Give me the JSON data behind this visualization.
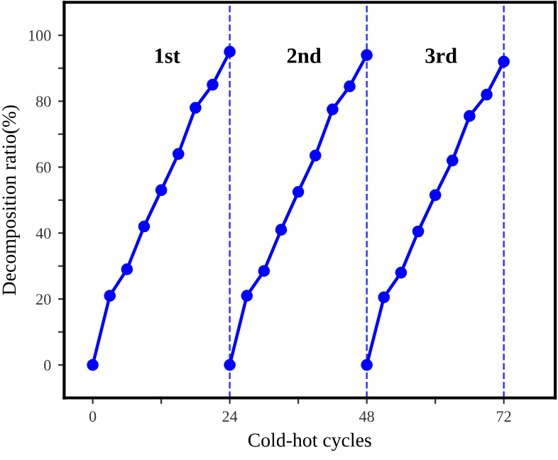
{
  "chart_data": {
    "type": "line",
    "xlabel": "Cold-hot cycles",
    "ylabel": "Decomposition ratio(%)",
    "series": [
      {
        "color": "#0000ff",
        "x": [
          0,
          3,
          6,
          9,
          12,
          15,
          18,
          21,
          24
        ],
        "values": [
          0,
          21,
          29,
          42,
          53,
          64,
          78,
          85,
          95
        ]
      },
      {
        "color": "#0000ff",
        "x": [
          24,
          27,
          30,
          33,
          36,
          39,
          42,
          45,
          48
        ],
        "values": [
          0,
          21,
          28.5,
          41,
          52.5,
          63.5,
          77.5,
          84.5,
          94
        ]
      },
      {
        "color": "#0000ff",
        "x": [
          48,
          51,
          54,
          57,
          60,
          63,
          66,
          69,
          72
        ],
        "values": [
          0,
          20.5,
          28,
          40.5,
          51.5,
          62,
          75.5,
          82,
          92
        ]
      }
    ],
    "marker": "circle",
    "line_style": "solid",
    "xlim": [
      -5,
      81
    ],
    "xticks": [
      0,
      {
        "value": 12,
        "label": null
      },
      24,
      {
        "value": 36,
        "label": null
      },
      48,
      {
        "value": 60,
        "label": null
      },
      72
    ],
    "ylim": [
      -10,
      110
    ],
    "yticks": [
      0,
      {
        "value": 10,
        "label": null
      },
      20,
      {
        "value": 30,
        "label": null
      },
      40,
      {
        "value": 50,
        "label": null
      },
      60,
      {
        "value": 70,
        "label": null
      },
      80,
      {
        "value": 90,
        "label": null
      },
      100
    ],
    "ref_lines": [
      {
        "axis": "x",
        "value": 24,
        "color": "#0000ff",
        "line_style": "dashed"
      },
      {
        "axis": "x",
        "value": 48,
        "color": "#0000ff",
        "line_style": "dashed"
      },
      {
        "axis": "x",
        "value": 72,
        "color": "#0000ff",
        "line_style": "dashed"
      }
    ],
    "annotations": [
      "1st",
      "2nd",
      "3rd"
    ],
    "grid": false,
    "legend": false
  }
}
